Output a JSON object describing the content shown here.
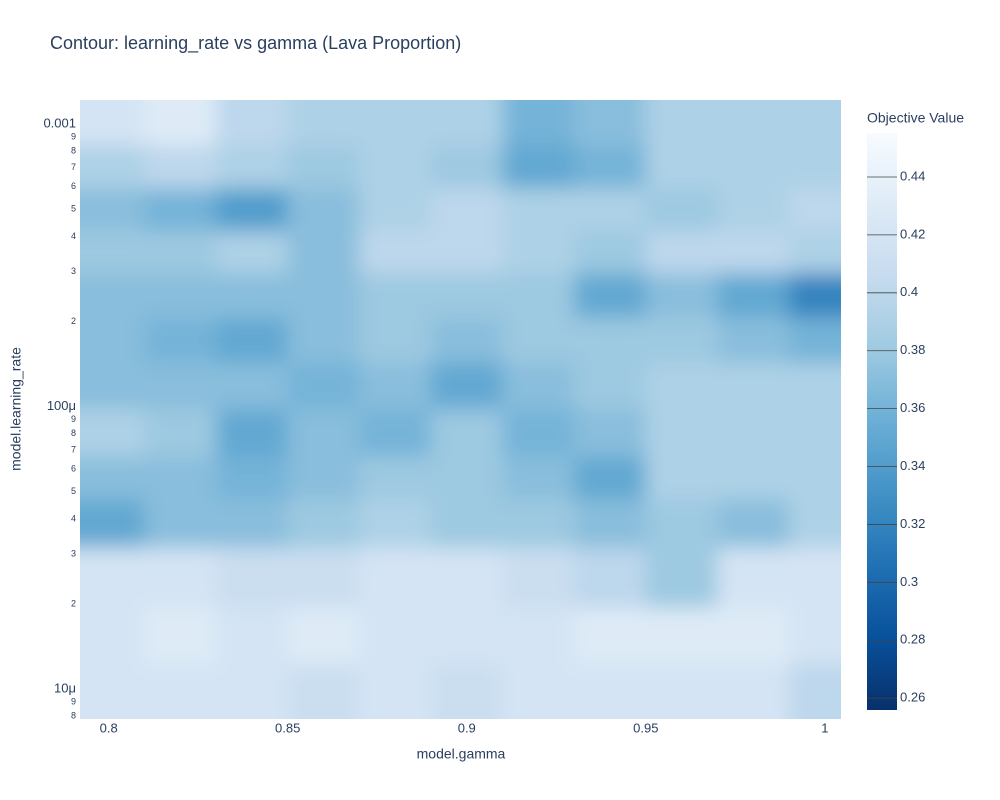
{
  "chart_data": {
    "type": "contour",
    "title": "Contour: learning_rate vs gamma (Lava Proportion)",
    "x_label": "model.gamma",
    "y_label": "model.learning_rate",
    "colorbar_title": "Objective Value",
    "y_log": true,
    "xlim": [
      0.792,
      1.0045
    ],
    "ylim": [
      7.83e-06,
      0.001216
    ],
    "zlim": [
      0.2559,
      0.4552
    ],
    "xticks": [
      0.8,
      0.85,
      0.9,
      0.95,
      1
    ],
    "yticks": [
      0.001,
      {
        "value": 0.0009,
        "label": "9"
      },
      {
        "value": 0.0008,
        "label": "8"
      },
      {
        "value": 0.0007,
        "label": "7"
      },
      {
        "value": 0.0006,
        "label": "6"
      },
      {
        "value": 0.0005,
        "label": "5"
      },
      {
        "value": 0.0004,
        "label": "4"
      },
      {
        "value": 0.0003,
        "label": "3"
      },
      {
        "value": 0.0002,
        "label": "2"
      },
      {
        "value": 0.0001,
        "label": "100μ"
      },
      {
        "value": 9e-05,
        "label": "9"
      },
      {
        "value": 8e-05,
        "label": "8"
      },
      {
        "value": 7e-05,
        "label": "7"
      },
      {
        "value": 6e-05,
        "label": "6"
      },
      {
        "value": 5e-05,
        "label": "5"
      },
      {
        "value": 4e-05,
        "label": "4"
      },
      {
        "value": 3e-05,
        "label": "3"
      },
      {
        "value": 2e-05,
        "label": "2"
      },
      {
        "value": 1e-05,
        "label": "10μ"
      },
      {
        "value": 9e-06,
        "label": "9"
      },
      {
        "value": 8e-06,
        "label": "8"
      }
    ],
    "zticks": [
      0.26,
      0.28,
      0.3,
      0.32,
      0.34,
      0.36,
      0.38,
      0.4,
      0.42,
      0.44
    ],
    "colorscale": [
      "#08306b",
      "#08519c",
      "#2171b5",
      "#4292c6",
      "#6baed6",
      "#9ecae1",
      "#c6dbef",
      "#deebf7",
      "#f7fbff"
    ],
    "x": [
      0.8,
      0.82,
      0.84,
      0.86,
      0.88,
      0.9,
      0.92,
      0.94,
      0.96,
      0.98,
      1.0
    ],
    "y": [
      0.001,
      0.0007,
      0.0005,
      0.00035,
      0.00025,
      0.00017,
      0.00012,
      8e-05,
      5.5e-05,
      4e-05,
      2.5e-05,
      1.5e-05,
      1e-05
    ],
    "z": [
      [
        0.42,
        0.43,
        0.4,
        0.39,
        0.39,
        0.39,
        0.36,
        0.37,
        0.39,
        0.39,
        0.39
      ],
      [
        0.39,
        0.4,
        0.39,
        0.38,
        0.39,
        0.38,
        0.35,
        0.36,
        0.39,
        0.39,
        0.39
      ],
      [
        0.37,
        0.36,
        0.34,
        0.37,
        0.39,
        0.4,
        0.39,
        0.39,
        0.38,
        0.39,
        0.4
      ],
      [
        0.38,
        0.38,
        0.39,
        0.37,
        0.4,
        0.4,
        0.39,
        0.38,
        0.4,
        0.4,
        0.39
      ],
      [
        0.37,
        0.37,
        0.37,
        0.37,
        0.38,
        0.38,
        0.38,
        0.35,
        0.37,
        0.35,
        0.32
      ],
      [
        0.37,
        0.36,
        0.35,
        0.37,
        0.38,
        0.37,
        0.38,
        0.38,
        0.38,
        0.37,
        0.36
      ],
      [
        0.37,
        0.37,
        0.37,
        0.36,
        0.37,
        0.35,
        0.37,
        0.38,
        0.39,
        0.39,
        0.39
      ],
      [
        0.39,
        0.38,
        0.35,
        0.37,
        0.36,
        0.38,
        0.36,
        0.37,
        0.39,
        0.39,
        0.39
      ],
      [
        0.37,
        0.37,
        0.36,
        0.37,
        0.38,
        0.38,
        0.37,
        0.35,
        0.39,
        0.39,
        0.39
      ],
      [
        0.35,
        0.37,
        0.37,
        0.38,
        0.39,
        0.38,
        0.38,
        0.37,
        0.38,
        0.37,
        0.39
      ],
      [
        0.42,
        0.42,
        0.41,
        0.41,
        0.42,
        0.42,
        0.41,
        0.4,
        0.38,
        0.42,
        0.42
      ],
      [
        0.42,
        0.43,
        0.42,
        0.43,
        0.42,
        0.42,
        0.42,
        0.43,
        0.43,
        0.43,
        0.42
      ],
      [
        0.42,
        0.42,
        0.42,
        0.41,
        0.42,
        0.41,
        0.42,
        0.42,
        0.42,
        0.42,
        0.4
      ]
    ]
  }
}
